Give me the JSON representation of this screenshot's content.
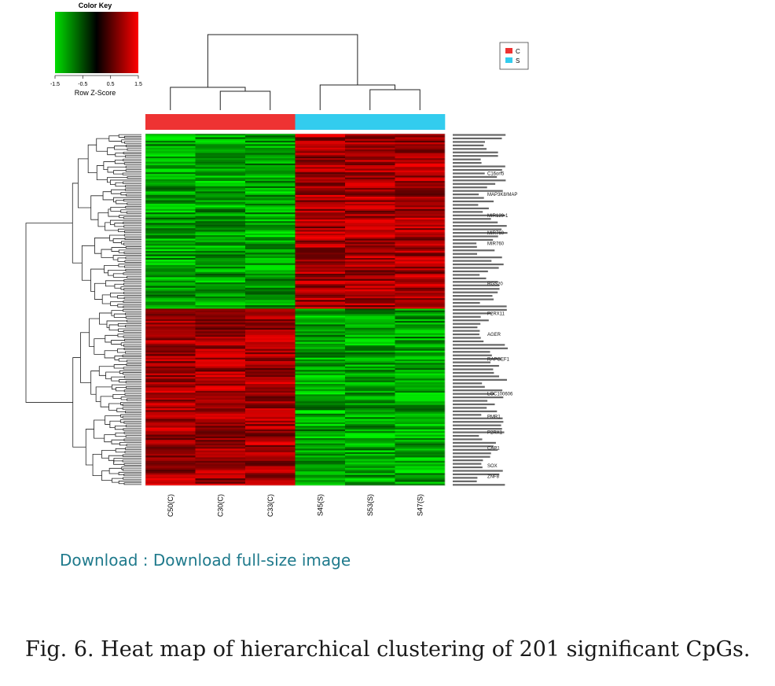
{
  "chart_data": {
    "type": "heatmap",
    "columns": [
      "C50(C)",
      "C30(C)",
      "C33(C)",
      "S45(S)",
      "S53(S)",
      "S47(S)"
    ],
    "column_groups": [
      "C",
      "C",
      "C",
      "S",
      "S",
      "S"
    ],
    "row_count": 201,
    "row_blocks": [
      {
        "rows": "1-100",
        "C": -1.0,
        "S": 1.0
      },
      {
        "rows": "101-201",
        "C": 1.0,
        "S": -1.0
      }
    ],
    "color_key": {
      "title": "Color Key",
      "label": "Row Z-Score",
      "range": [
        -1.5,
        1.5
      ],
      "ticks": [
        "-1.5",
        "-0.5",
        "0.5",
        "1.5"
      ],
      "low_color": "#00dd00",
      "mid_color": "#000000",
      "high_color": "#ff0000"
    },
    "legend": [
      {
        "name": "C",
        "color": "#ee3333"
      },
      {
        "name": "S",
        "color": "#33ccee"
      }
    ],
    "row_labels_visible": [
      "C16orf5",
      "MAP3K8/MAP",
      "MIR129-1",
      "MIR760",
      "MIR760",
      "RGS20",
      "P2RX11",
      "AGER",
      "RAPGEF1",
      "LOC100606",
      "PMR1",
      "P2RX1",
      "CAP1",
      "SOX",
      "ZNF8"
    ]
  },
  "download": {
    "label": "Download : Download full-size image"
  },
  "caption": {
    "text": "Fig. 6. Heat map of hierarchical clustering of 201 significant CpGs."
  }
}
